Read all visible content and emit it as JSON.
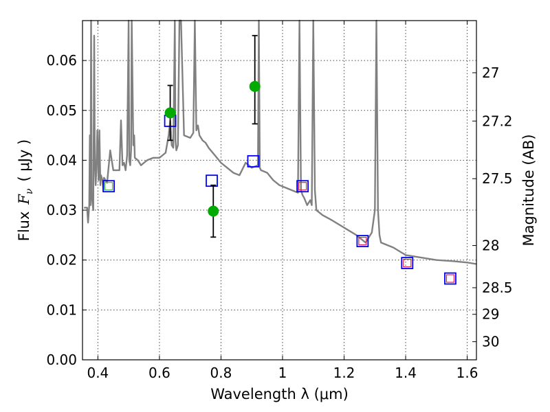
{
  "chart_data": {
    "type": "scatter",
    "xlabel": "Wavelength  λ (μm)",
    "ylabel": "Flux  F_ν  ( μJy )",
    "ylabel_parts": {
      "prefix": "Flux",
      "symbol": "F",
      "subscript": "ν",
      "unit": "( μJy )"
    },
    "y2label": "Magnitude (AB)",
    "xlim": [
      0.35,
      1.63
    ],
    "ylim": [
      0,
      0.068
    ],
    "grid": true,
    "x_ticks": [
      {
        "value": 0.4,
        "label": "0.4"
      },
      {
        "value": 0.6,
        "label": "0.6"
      },
      {
        "value": 0.8,
        "label": "0.8"
      },
      {
        "value": 1.0,
        "label": "1"
      },
      {
        "value": 1.2,
        "label": "1.2"
      },
      {
        "value": 1.4,
        "label": "1.4"
      },
      {
        "value": 1.6,
        "label": "1.6"
      }
    ],
    "y_ticks": [
      {
        "value": 0.0,
        "label": "0.00"
      },
      {
        "value": 0.01,
        "label": "0.01"
      },
      {
        "value": 0.02,
        "label": "0.02"
      },
      {
        "value": 0.03,
        "label": "0.03"
      },
      {
        "value": 0.04,
        "label": "0.04"
      },
      {
        "value": 0.05,
        "label": "0.05"
      },
      {
        "value": 0.06,
        "label": "0.06"
      }
    ],
    "y2_ticks": [
      {
        "value": 27,
        "label": "27"
      },
      {
        "value": 27.2,
        "label": "27.2"
      },
      {
        "value": 27.5,
        "label": "27.5"
      },
      {
        "value": 28,
        "label": "28"
      },
      {
        "value": 28.5,
        "label": "28.5"
      },
      {
        "value": 29,
        "label": "29"
      },
      {
        "value": 30,
        "label": "30"
      }
    ],
    "series": [
      {
        "kind": "line",
        "color": "#808080",
        "x": [
          0.355,
          0.365,
          0.368,
          0.372,
          0.374,
          0.376,
          0.378,
          0.38,
          0.383,
          0.385,
          0.388,
          0.39,
          0.393,
          0.395,
          0.398,
          0.402,
          0.405,
          0.408,
          0.41,
          0.415,
          0.418,
          0.42,
          0.43,
          0.44,
          0.45,
          0.46,
          0.47,
          0.475,
          0.48,
          0.485,
          0.49,
          0.495,
          0.5,
          0.502,
          0.505,
          0.508,
          0.51,
          0.515,
          0.518,
          0.52,
          0.53,
          0.54,
          0.55,
          0.56,
          0.58,
          0.6,
          0.62,
          0.63,
          0.635,
          0.64,
          0.645,
          0.65,
          0.652,
          0.655,
          0.66,
          0.665,
          0.67,
          0.68,
          0.7,
          0.71,
          0.715,
          0.72,
          0.725,
          0.73,
          0.74,
          0.75,
          0.76,
          0.78,
          0.8,
          0.82,
          0.84,
          0.86,
          0.88,
          0.9,
          0.92,
          0.923,
          0.926,
          0.93,
          0.95,
          0.97,
          0.99,
          1.01,
          1.03,
          1.05,
          1.055,
          1.06,
          1.065,
          1.07,
          1.08,
          1.09,
          1.095,
          1.1,
          1.105,
          1.11,
          1.13,
          1.16,
          1.2,
          1.24,
          1.27,
          1.29,
          1.3,
          1.305,
          1.31,
          1.315,
          1.32,
          1.36,
          1.4,
          1.45,
          1.5,
          1.55,
          1.6,
          1.63
        ],
        "values": [
          0.0305,
          0.0305,
          0.0275,
          0.031,
          0.045,
          0.031,
          0.068,
          0.033,
          0.031,
          0.03,
          0.065,
          0.04,
          0.035,
          0.038,
          0.046,
          0.036,
          0.046,
          0.035,
          0.037,
          0.036,
          0.034,
          0.0365,
          0.0355,
          0.042,
          0.038,
          0.038,
          0.038,
          0.048,
          0.039,
          0.0395,
          0.038,
          0.041,
          0.068,
          0.04,
          0.039,
          0.042,
          0.068,
          0.043,
          0.045,
          0.0405,
          0.04,
          0.039,
          0.0395,
          0.04,
          0.0405,
          0.0405,
          0.0415,
          0.045,
          0.048,
          0.043,
          0.0425,
          0.068,
          0.044,
          0.042,
          0.043,
          0.068,
          0.068,
          0.045,
          0.0445,
          0.0455,
          0.068,
          0.046,
          0.047,
          0.045,
          0.044,
          0.0435,
          0.0425,
          0.041,
          0.0395,
          0.0385,
          0.0375,
          0.037,
          0.0395,
          0.0385,
          0.039,
          0.068,
          0.0385,
          0.038,
          0.0375,
          0.036,
          0.035,
          0.0345,
          0.034,
          0.0335,
          0.068,
          0.034,
          0.033,
          0.0325,
          0.031,
          0.032,
          0.031,
          0.068,
          0.034,
          0.03,
          0.029,
          0.028,
          0.0265,
          0.025,
          0.0235,
          0.0255,
          0.03,
          0.068,
          0.03,
          0.025,
          0.0235,
          0.0225,
          0.021,
          0.0205,
          0.02,
          0.0198,
          0.0195,
          0.0192
        ]
      },
      {
        "kind": "scatter-errorbar",
        "color": "#00aa00",
        "marker": "circle",
        "x": [
          0.635,
          0.775,
          0.91
        ],
        "values": [
          0.0495,
          0.0298,
          0.0548
        ],
        "err_low": [
          0.0055,
          0.0052,
          0.0075
        ],
        "err_high": [
          0.0055,
          0.0052,
          0.0102
        ]
      },
      {
        "kind": "scatter",
        "color": "#0000ff",
        "marker": "square",
        "x": [
          0.435,
          0.635,
          0.77,
          0.905,
          1.065,
          1.26,
          1.405,
          1.545
        ],
        "values": [
          0.0348,
          0.0479,
          0.0359,
          0.0398,
          0.0348,
          0.0238,
          0.0194,
          0.0163
        ]
      },
      {
        "kind": "scatter",
        "color": "#dd2244",
        "marker": "square-small",
        "x": [
          1.065,
          1.26,
          1.405,
          1.545
        ],
        "values": [
          0.0348,
          0.0238,
          0.0194,
          0.0163
        ]
      },
      {
        "kind": "scatter",
        "color": "#44bb44",
        "marker": "square-small",
        "x": [
          0.435
        ],
        "values": [
          0.0348
        ]
      }
    ]
  }
}
